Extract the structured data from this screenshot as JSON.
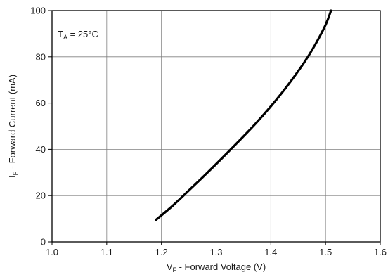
{
  "chart_data": {
    "type": "line",
    "title": "",
    "xlabel": {
      "main": "V",
      "sub": "F",
      "rest": " - Forward Voltage (V)"
    },
    "ylabel": {
      "main": "I",
      "sub": "F",
      "rest": " - Forward Current (mA)"
    },
    "xlim": [
      1.0,
      1.6
    ],
    "ylim": [
      0,
      100
    ],
    "x_ticks": [
      "1.0",
      "1.1",
      "1.2",
      "1.3",
      "1.4",
      "1.5",
      "1.6"
    ],
    "y_ticks": [
      "0",
      "20",
      "40",
      "60",
      "80",
      "100"
    ],
    "grid": true,
    "annotation": {
      "main": "T",
      "sub": "A",
      "rest": " = 25°C"
    },
    "series": [
      {
        "x": [
          1.19,
          1.22,
          1.25,
          1.28,
          1.31,
          1.34,
          1.37,
          1.4,
          1.43,
          1.46,
          1.48,
          1.5,
          1.51
        ],
        "y": [
          9.5,
          15.5,
          22.2,
          29.0,
          36.0,
          43.2,
          50.6,
          58.6,
          67.4,
          77.2,
          84.8,
          93.8,
          100
        ]
      }
    ],
    "colors": {
      "line": "#000000",
      "grid": "#808080",
      "frame": "#000000",
      "text": "#1a1a1a"
    }
  }
}
